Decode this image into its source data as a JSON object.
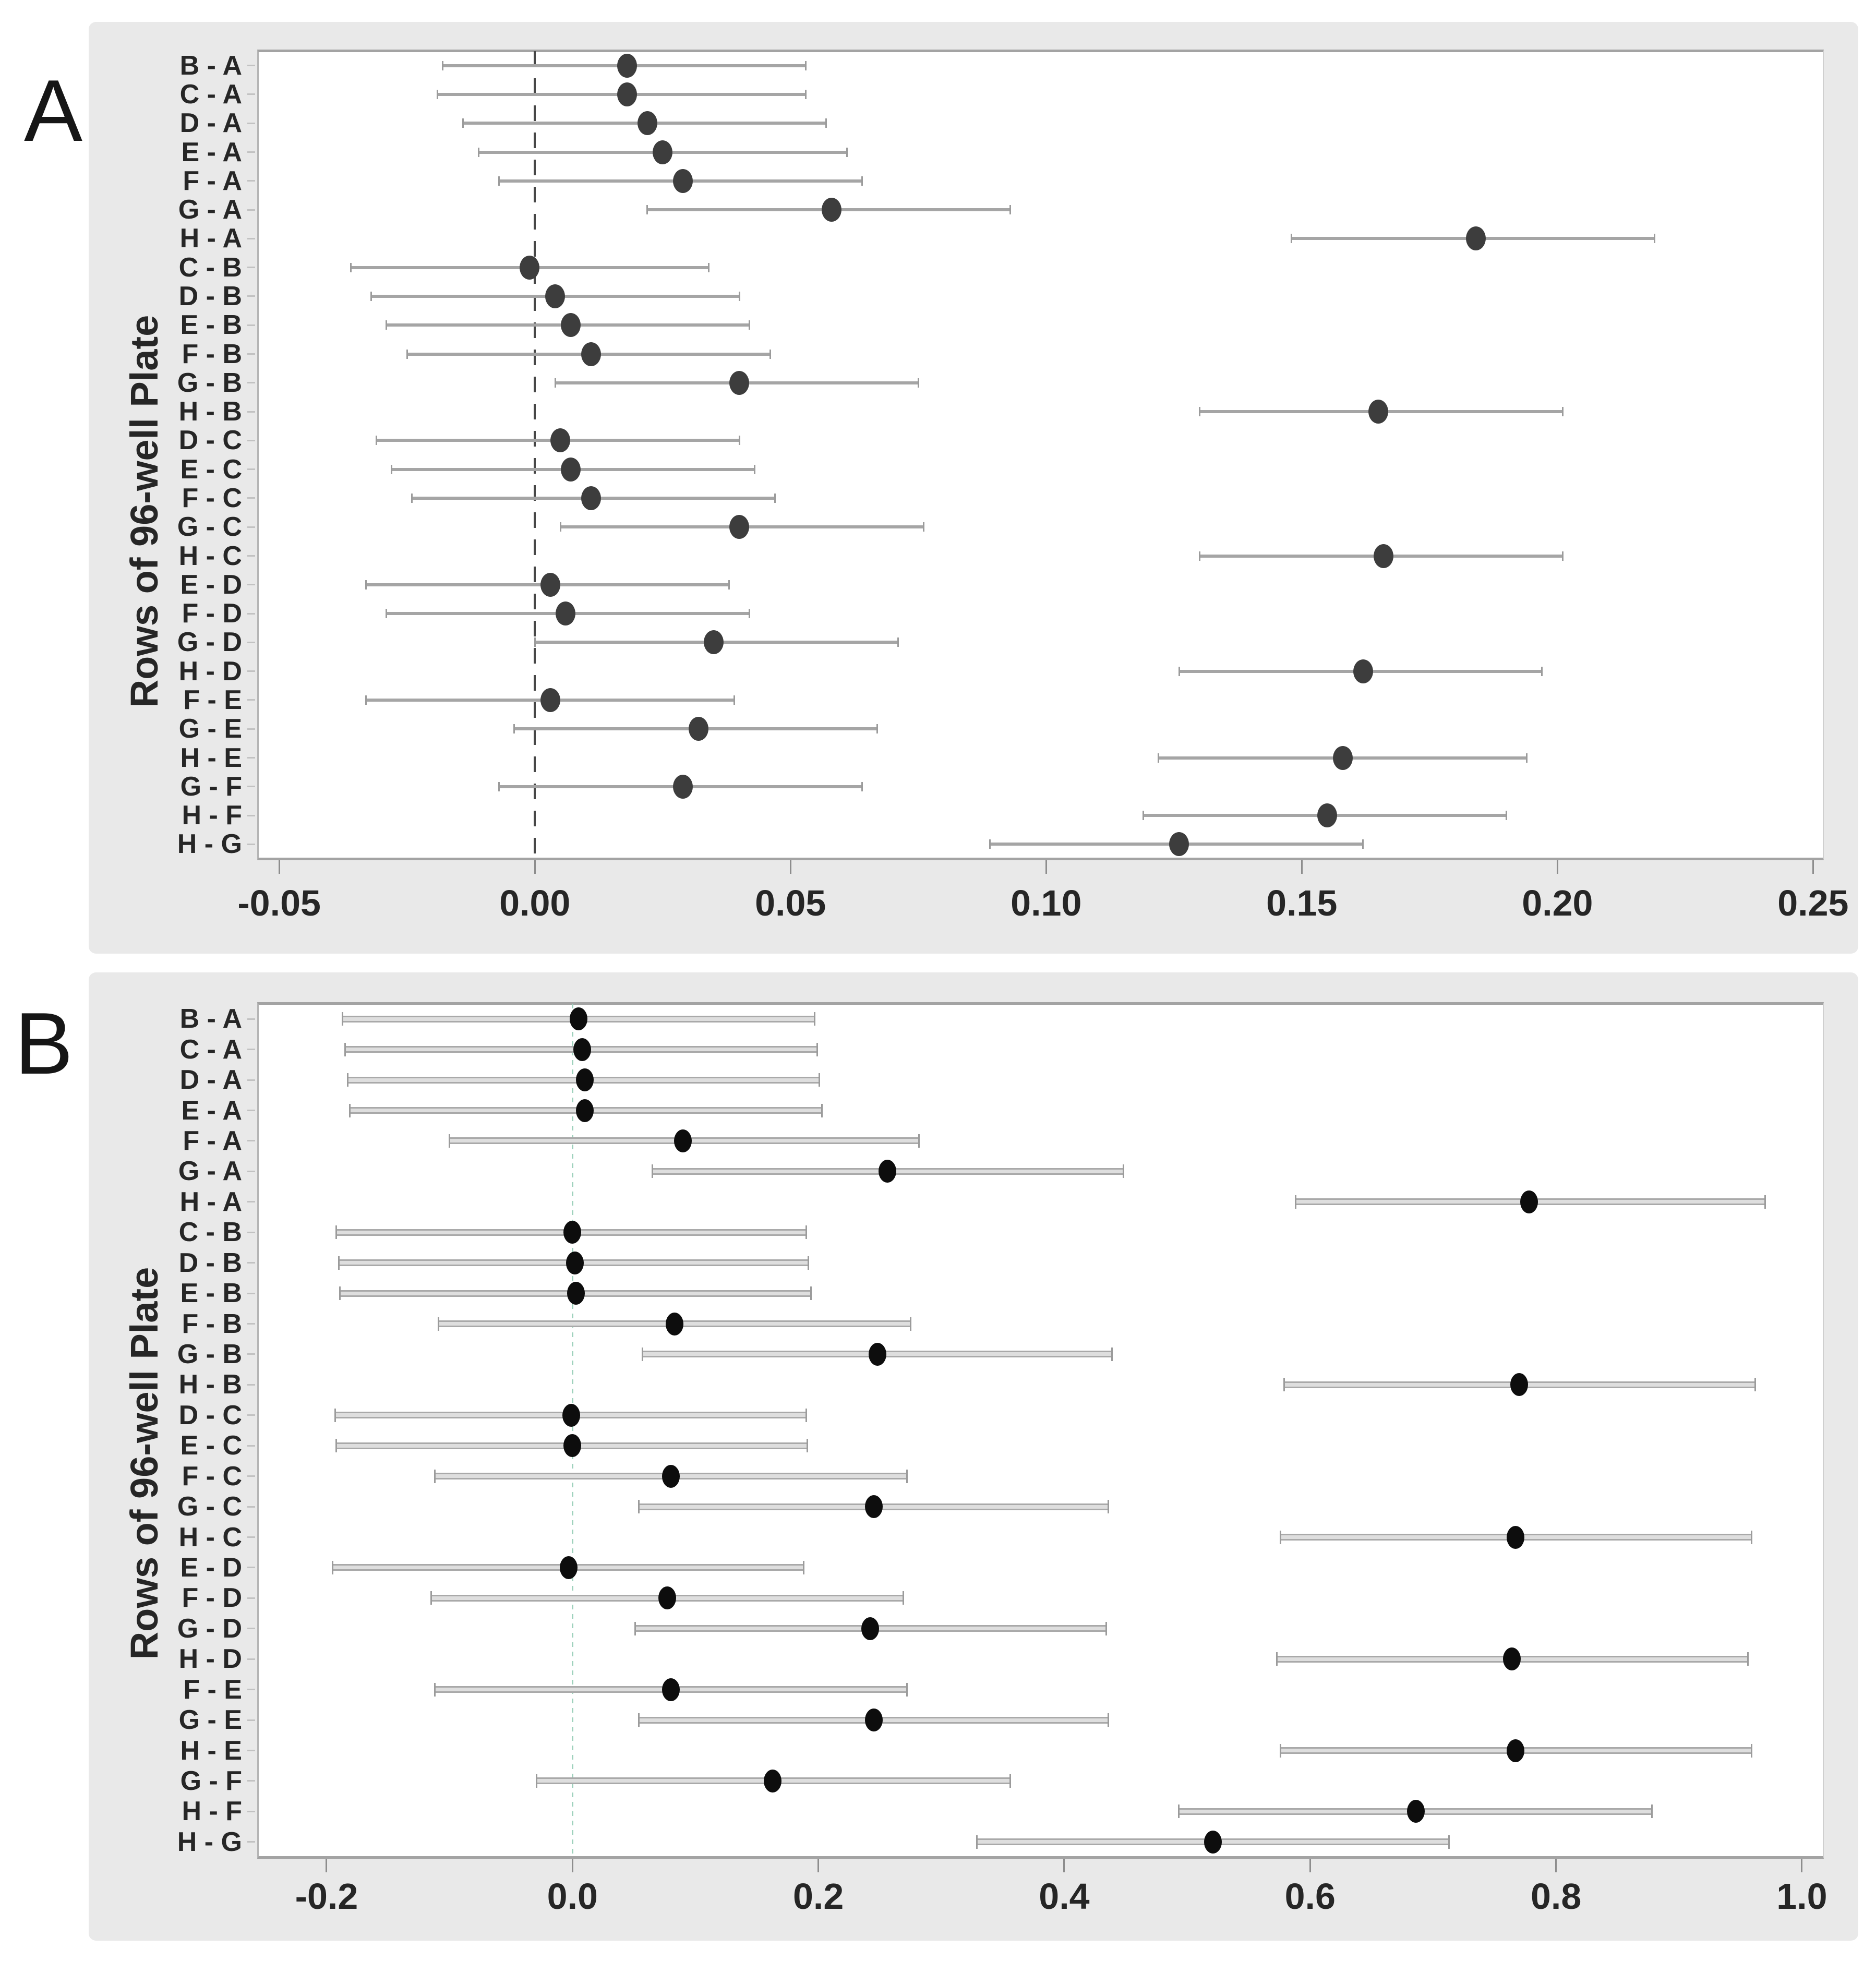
{
  "figure": {
    "panel_count": 2,
    "background_color": "#e9e9e9"
  },
  "chart_data": [
    {
      "type": "scatter",
      "subtype": "dot-with-ci-interval-plot",
      "panel_label": "A",
      "title": "",
      "xlabel": "",
      "ylabel": "Rows of 96-well Plate",
      "grid": false,
      "legend": "none",
      "xlim": [
        -0.0542,
        0.2519
      ],
      "x_ticks": [
        -0.05,
        0.0,
        0.05,
        0.1,
        0.15,
        0.2,
        0.25
      ],
      "x_tick_labels": [
        "-0.05",
        "0.00",
        "0.05",
        "0.10",
        "0.15",
        "0.20",
        "0.25"
      ],
      "ref_line": {
        "x": 0.0,
        "style": "dashed",
        "color": "#474747"
      },
      "marker_color": "#3d3d3d",
      "ci_color": "#a5a5a5",
      "categories": [
        "B - A",
        "C - A",
        "D - A",
        "E - A",
        "F - A",
        "G - A",
        "H - A",
        "C - B",
        "D - B",
        "E - B",
        "F - B",
        "G - B",
        "H - B",
        "D - C",
        "E - C",
        "F - C",
        "G - C",
        "H - C",
        "E - D",
        "F - D",
        "G - D",
        "H - D",
        "F - E",
        "G - E",
        "H - E",
        "G - F",
        "H - F",
        "H - G"
      ],
      "values": [
        0.018,
        0.018,
        0.022,
        0.025,
        0.029,
        0.058,
        0.184,
        -0.001,
        0.004,
        0.007,
        0.011,
        0.04,
        0.165,
        0.005,
        0.007,
        0.011,
        0.04,
        0.166,
        0.003,
        0.006,
        0.035,
        0.162,
        0.003,
        0.032,
        0.158,
        0.029,
        0.155,
        0.126
      ],
      "ci_low": [
        -0.018,
        -0.019,
        -0.014,
        -0.011,
        -0.007,
        0.022,
        0.148,
        -0.036,
        -0.032,
        -0.029,
        -0.025,
        0.004,
        0.13,
        -0.031,
        -0.028,
        -0.024,
        0.005,
        0.13,
        -0.033,
        -0.029,
        0.0,
        0.126,
        -0.033,
        -0.004,
        0.122,
        -0.007,
        0.119,
        0.089
      ],
      "ci_high": [
        0.053,
        0.053,
        0.057,
        0.061,
        0.064,
        0.093,
        0.219,
        0.034,
        0.04,
        0.042,
        0.046,
        0.075,
        0.201,
        0.04,
        0.043,
        0.047,
        0.076,
        0.201,
        0.038,
        0.042,
        0.071,
        0.197,
        0.039,
        0.067,
        0.194,
        0.064,
        0.19,
        0.162
      ]
    },
    {
      "type": "scatter",
      "subtype": "dot-with-ci-interval-plot",
      "panel_label": "B",
      "title": "",
      "xlabel": "",
      "ylabel": "Rows of 96-well Plate",
      "grid": false,
      "legend": "none",
      "xlim": [
        -0.256,
        1.017
      ],
      "x_ticks": [
        -0.2,
        0.0,
        0.2,
        0.4,
        0.6,
        0.8,
        1.0
      ],
      "x_tick_labels": [
        "-0.2",
        "0.0",
        "0.2",
        "0.4",
        "0.6",
        "0.8",
        "1.0"
      ],
      "ref_line": {
        "x": 0.0,
        "style": "dotted",
        "color": "#9fd2bd"
      },
      "marker_color": "#0d0d0d",
      "ci_color": "#c6c6c6",
      "categories": [
        "B - A",
        "C - A",
        "D - A",
        "E - A",
        "F - A",
        "G - A",
        "H - A",
        "C - B",
        "D - B",
        "E - B",
        "F - B",
        "G - B",
        "H - B",
        "D - C",
        "E - C",
        "F - C",
        "G - C",
        "H - C",
        "E - D",
        "F - D",
        "G - D",
        "H - D",
        "F - E",
        "G - E",
        "H - E",
        "G - F",
        "H - F",
        "H - G"
      ],
      "values": [
        0.005,
        0.008,
        0.01,
        0.01,
        0.09,
        0.256,
        0.778,
        0.0,
        0.002,
        0.003,
        0.083,
        0.248,
        0.77,
        -0.001,
        0.0,
        0.08,
        0.245,
        0.767,
        -0.003,
        0.077,
        0.242,
        0.764,
        0.08,
        0.245,
        0.767,
        0.163,
        0.686,
        0.521
      ],
      "ci_low": [
        -0.187,
        -0.185,
        -0.183,
        -0.181,
        -0.1,
        0.065,
        0.588,
        -0.192,
        -0.19,
        -0.189,
        -0.109,
        0.057,
        0.579,
        -0.193,
        -0.192,
        -0.112,
        0.054,
        0.576,
        -0.195,
        -0.115,
        0.051,
        0.573,
        -0.112,
        0.054,
        0.576,
        -0.029,
        0.493,
        0.329
      ],
      "ci_high": [
        0.197,
        0.199,
        0.201,
        0.203,
        0.282,
        0.448,
        0.97,
        0.19,
        0.192,
        0.194,
        0.275,
        0.439,
        0.962,
        0.19,
        0.191,
        0.272,
        0.436,
        0.959,
        0.188,
        0.269,
        0.434,
        0.956,
        0.272,
        0.436,
        0.959,
        0.356,
        0.878,
        0.713
      ]
    }
  ]
}
